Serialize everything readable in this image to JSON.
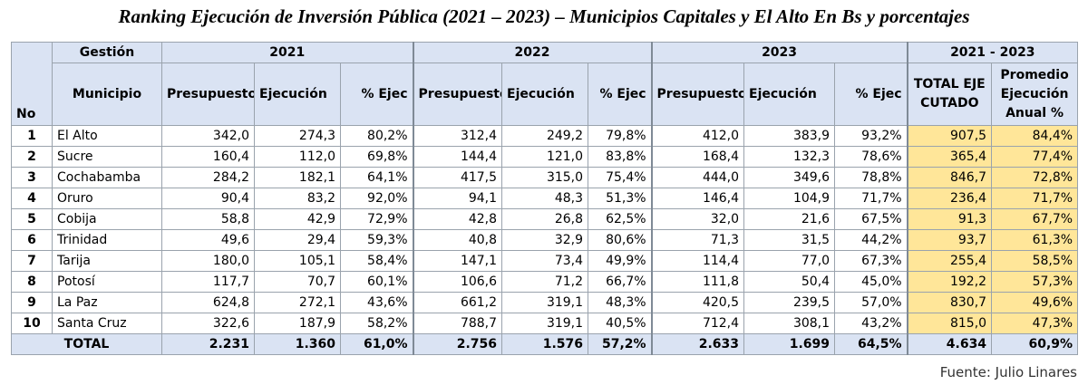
{
  "title": "Ranking Ejecución de Inversión Pública (2021 – 2023) – Municipios Capitales y El Alto En Bs y porcentajes",
  "header": {
    "no": "No",
    "gestion": "Gestión",
    "municipio": "Municipio",
    "years": [
      "2021",
      "2022",
      "2023",
      "2021 - 2023"
    ],
    "columns": [
      "Presupuesto",
      "Ejecución",
      "% Ejec",
      "Presupuesto",
      "Ejecución",
      "% Ejec",
      "Presupuesto",
      "Ejecución",
      "% Ejec",
      "TOTAL EJECUTADO",
      "Promedio Ejecución Anual %"
    ]
  },
  "rows": [
    [
      "1",
      "El Alto",
      "342,0",
      "274,3",
      "80,2%",
      "312,4",
      "249,2",
      "79,8%",
      "412,0",
      "383,9",
      "93,2%",
      "907,5",
      "84,4%"
    ],
    [
      "2",
      "Sucre",
      "160,4",
      "112,0",
      "69,8%",
      "144,4",
      "121,0",
      "83,8%",
      "168,4",
      "132,3",
      "78,6%",
      "365,4",
      "77,4%"
    ],
    [
      "3",
      "Cochabamba",
      "284,2",
      "182,1",
      "64,1%",
      "417,5",
      "315,0",
      "75,4%",
      "444,0",
      "349,6",
      "78,8%",
      "846,7",
      "72,8%"
    ],
    [
      "4",
      "Oruro",
      "90,4",
      "83,2",
      "92,0%",
      "94,1",
      "48,3",
      "51,3%",
      "146,4",
      "104,9",
      "71,7%",
      "236,4",
      "71,7%"
    ],
    [
      "5",
      "Cobija",
      "58,8",
      "42,9",
      "72,9%",
      "42,8",
      "26,8",
      "62,5%",
      "32,0",
      "21,6",
      "67,5%",
      "91,3",
      "67,7%"
    ],
    [
      "6",
      "Trinidad",
      "49,6",
      "29,4",
      "59,3%",
      "40,8",
      "32,9",
      "80,6%",
      "71,3",
      "31,5",
      "44,2%",
      "93,7",
      "61,3%"
    ],
    [
      "7",
      "Tarija",
      "180,0",
      "105,1",
      "58,4%",
      "147,1",
      "73,4",
      "49,9%",
      "114,4",
      "77,0",
      "67,3%",
      "255,4",
      "58,5%"
    ],
    [
      "8",
      "Potosí",
      "117,7",
      "70,7",
      "60,1%",
      "106,6",
      "71,2",
      "66,7%",
      "111,8",
      "50,4",
      "45,0%",
      "192,2",
      "57,3%"
    ],
    [
      "9",
      "La Paz",
      "624,8",
      "272,1",
      "43,6%",
      "661,2",
      "319,1",
      "48,3%",
      "420,5",
      "239,5",
      "57,0%",
      "830,7",
      "49,6%"
    ],
    [
      "10",
      "Santa Cruz",
      "322,6",
      "187,9",
      "58,2%",
      "788,7",
      "319,1",
      "40,5%",
      "712,4",
      "308,1",
      "43,2%",
      "815,0",
      "47,3%"
    ]
  ],
  "total": [
    "TOTAL",
    "2.231",
    "1.360",
    "61,0%",
    "2.756",
    "1.576",
    "57,2%",
    "2.633",
    "1.699",
    "64,5%",
    "4.634",
    "60,9%"
  ],
  "source": "Fuente: Julio Linares"
}
